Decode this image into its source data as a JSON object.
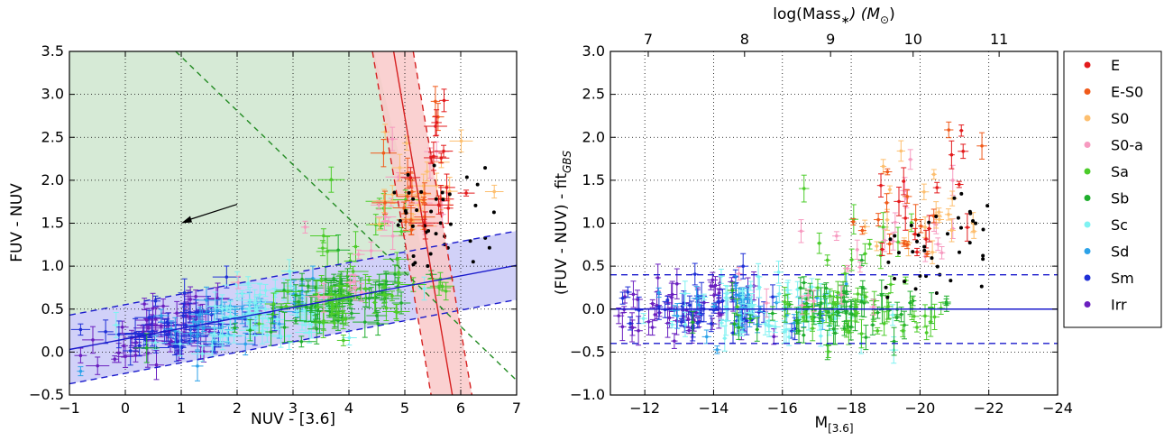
{
  "chart_data": [
    {
      "type": "scatter",
      "panel": "left",
      "xlabel": "NUV - [3.6]",
      "ylabel": "FUV - NUV",
      "xlim": [
        -1,
        7
      ],
      "ylim": [
        -0.5,
        3.5
      ],
      "xticks": [
        "−1",
        "0",
        "1",
        "2",
        "3",
        "4",
        "5",
        "6",
        "7"
      ],
      "yticks": [
        "−0.5",
        "0.0",
        "0.5",
        "1.0",
        "1.5",
        "2.0",
        "2.5",
        "3.0",
        "3.5"
      ],
      "grid": true,
      "regions": {
        "green_region_color": "#d6ead6",
        "blue_band_color": "#c9c9f7",
        "red_band_color": "#f9c9c9"
      },
      "fit_line": {
        "from": [
          -1,
          0.03
        ],
        "to": [
          7,
          1.01
        ],
        "band": 0.4,
        "color": "#1a1acc"
      },
      "red_line": {
        "from": [
          4.8,
          3.5
        ],
        "to": [
          5.85,
          -0.5
        ],
        "color": "#d62020"
      },
      "green_dashed_line": {
        "from": [
          0.9,
          3.5
        ],
        "to": [
          7,
          -0.33
        ],
        "color": "#228b22"
      },
      "arrow": {
        "from": [
          2.0,
          1.72
        ],
        "to": [
          1.0,
          1.5
        ]
      },
      "notes": "Several hundred galaxies with error bars, coloured by morphological type; black points mark galaxies without UV morphology."
    },
    {
      "type": "scatter",
      "panel": "right",
      "xlabel": "M",
      "xlabel_sub": "[3.6]",
      "ylabel": "(FUV - NUV) - fit",
      "ylabel_sub": "GBS",
      "top_xlabel": "log(Mass",
      "top_xlabel_sub": "∗",
      "top_xlabel_tail": ") (M",
      "top_xlabel_sun": "⊙",
      "xlim": [
        -11,
        -24
      ],
      "ylim": [
        -1.0,
        3.0
      ],
      "xticks": [
        "−12",
        "−14",
        "−16",
        "−18",
        "−20",
        "−22",
        "−24"
      ],
      "yticks": [
        "−1.0",
        "−0.5",
        "0.0",
        "0.5",
        "1.0",
        "1.5",
        "2.0",
        "2.5",
        "3.0"
      ],
      "top_ticks": [
        "7",
        "8",
        "9",
        "10",
        "11"
      ],
      "grid": true,
      "zero_line_color": "#1a1acc",
      "band": 0.4
    }
  ],
  "legend": {
    "placement": "right",
    "entries": [
      {
        "label": "E",
        "color": "#e31a1c"
      },
      {
        "label": "E-S0",
        "color": "#f05a1a"
      },
      {
        "label": "S0",
        "color": "#fdbf6f"
      },
      {
        "label": "S0-a",
        "color": "#f79ac0"
      },
      {
        "label": "Sa",
        "color": "#4ccc2a"
      },
      {
        "label": "Sb",
        "color": "#1fae2d"
      },
      {
        "label": "Sc",
        "color": "#7ff2f2"
      },
      {
        "label": "Sd",
        "color": "#2ca2e8"
      },
      {
        "label": "Sm",
        "color": "#1f2fd6"
      },
      {
        "label": "Irr",
        "color": "#6a1fbf"
      }
    ]
  }
}
